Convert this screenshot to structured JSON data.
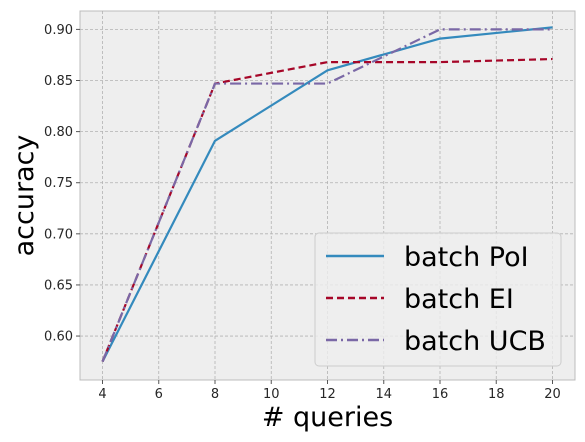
{
  "chart_data": {
    "type": "line",
    "title": "",
    "xlabel": "# queries",
    "ylabel": "accuracy",
    "x": [
      4,
      8,
      12,
      16,
      20
    ],
    "xlim": [
      3.2,
      20.8
    ],
    "ylim": [
      0.557,
      0.918
    ],
    "xticks": [
      4,
      6,
      8,
      10,
      12,
      14,
      16,
      18,
      20
    ],
    "xtick_labels": [
      "4",
      "6",
      "8",
      "10",
      "12",
      "14",
      "16",
      "18",
      "20"
    ],
    "yticks": [
      0.6,
      0.65,
      0.7,
      0.75,
      0.8,
      0.85,
      0.9
    ],
    "ytick_labels": [
      "0.60",
      "0.65",
      "0.70",
      "0.75",
      "0.80",
      "0.85",
      "0.90"
    ],
    "grid": true,
    "legend_position": "bottom-right",
    "series": [
      {
        "name": "batch PoI",
        "values": [
          0.575,
          0.791,
          0.86,
          0.891,
          0.902
        ],
        "color": "#348ABD",
        "dash": "solid"
      },
      {
        "name": "batch EI",
        "values": [
          0.575,
          0.847,
          0.868,
          0.868,
          0.871
        ],
        "color": "#A60628",
        "dash": "dashed"
      },
      {
        "name": "batch UCB",
        "values": [
          0.575,
          0.847,
          0.847,
          0.9,
          0.9
        ],
        "color": "#7A68A6",
        "dash": "dashdot"
      }
    ],
    "colors": {
      "background": "#EEEEEE",
      "grid": "#B2B2B2",
      "spine": "#BCBCBC"
    }
  }
}
